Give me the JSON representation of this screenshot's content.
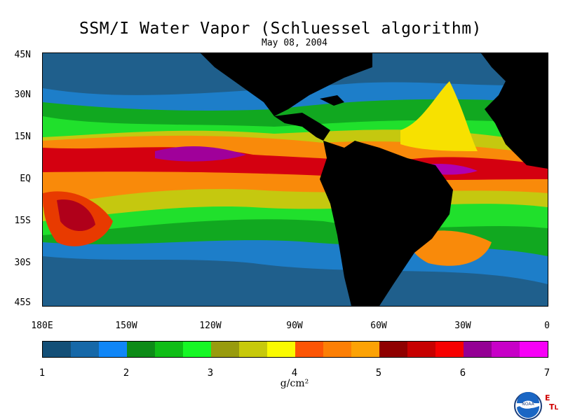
{
  "title": "SSM/I Water Vapor (Schluessel algorithm)",
  "date": "May 08, 2004",
  "map": {
    "lat_labels": [
      "45N",
      "30N",
      "15N",
      "EQ",
      "15S",
      "30S",
      "45S"
    ],
    "lon_labels": [
      "180E",
      "150W",
      "120W",
      "90W",
      "60W",
      "30W",
      "0"
    ],
    "land_color": "#000000"
  },
  "colorbar": {
    "colors": [
      "#134f77",
      "#1668a8",
      "#0f86f7",
      "#0d8b17",
      "#0fbd16",
      "#16f725",
      "#989b0e",
      "#c7c90b",
      "#fafa00",
      "#fc5505",
      "#fc7f05",
      "#fca205",
      "#8f0000",
      "#c70000",
      "#f70000",
      "#940094",
      "#c700c7",
      "#f700f7"
    ],
    "tick_labels": [
      "1",
      "2",
      "3",
      "4",
      "5",
      "6",
      "7"
    ],
    "unit": "g/cm²"
  },
  "logo": {
    "text": "NOAA",
    "etl_letters": [
      "E",
      "T",
      "L"
    ]
  }
}
